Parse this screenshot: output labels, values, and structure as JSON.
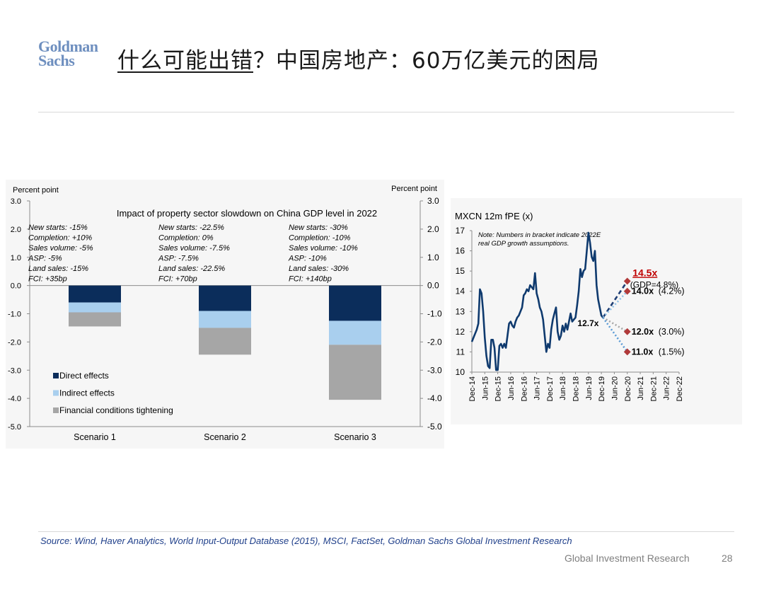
{
  "header": {
    "logo_line1": "Goldman",
    "logo_line2": "Sachs",
    "title_underlined": "什么可能出错",
    "title_rest": "？中国房地产：60万亿美元的困局"
  },
  "chart_data": [
    {
      "type": "bar",
      "stacked": true,
      "title": "Impact of property sector slowdown on China GDP level in 2022",
      "ylabel_left": "Percent point",
      "ylabel_right": "Percent point",
      "ylim": [
        -5.0,
        3.0
      ],
      "yticks_left": [
        "3.0",
        "2.0",
        "1.0",
        "0.0",
        "-1.0",
        "-2.0",
        "-3.0",
        "-4.0",
        "-5.0"
      ],
      "yticks_right": [
        "3.0",
        "2.0",
        "1.0",
        "0.0",
        "-1.0",
        "-2.0",
        "-3.0",
        "-4.0",
        "-5.0"
      ],
      "categories": [
        "Scenario 1",
        "Scenario 2",
        "Scenario 3"
      ],
      "series": [
        {
          "name": "Direct effects",
          "color": "#0b2d5b",
          "values": [
            -0.6,
            -0.9,
            -1.25
          ]
        },
        {
          "name": "Indirect effects",
          "color": "#a9cfee",
          "values": [
            -0.35,
            -0.6,
            -0.85
          ]
        },
        {
          "name": "Financial conditions tightening",
          "color": "#a6a6a6",
          "values": [
            -0.5,
            -0.95,
            -1.95
          ]
        }
      ],
      "annotations": [
        [
          "New starts: -15%",
          "Completion: +10%",
          "Sales volume: -5%",
          "ASP: -5%",
          "Land sales: -15%",
          "FCI: +35bp"
        ],
        [
          "New starts: -22.5%",
          "Completion: 0%",
          "Sales volume: -7.5%",
          "ASP: -7.5%",
          "Land sales: -22.5%",
          "FCI: +70bp"
        ],
        [
          "New starts: -30%",
          "Completion: -10%",
          "Sales volume: -10%",
          "ASP: -10%",
          "Land sales: -30%",
          "FCI: +140bp"
        ]
      ],
      "legend_position": "bottom-left"
    },
    {
      "type": "line",
      "title": "MXCN 12m fPE (x)",
      "note": [
        "Note: Numbers in bracket indicate 2022E",
        "real GDP growth assumptions."
      ],
      "ylim": [
        10,
        17
      ],
      "yticks": [
        "17",
        "16",
        "15",
        "14",
        "13",
        "12",
        "11",
        "10"
      ],
      "xticks": [
        "Dec-14",
        "Jun-15",
        "Dec-15",
        "Jun-16",
        "Dec-16",
        "Jun-17",
        "Dec-17",
        "Jun-18",
        "Dec-18",
        "Jun-19",
        "Dec-19",
        "Jun-20",
        "Dec-20",
        "Jun-21",
        "Dec-21",
        "Jun-22",
        "Dec-22"
      ],
      "series": [
        {
          "name": "MXCN 12m fPE",
          "color": "#0f3a6e",
          "x_start": 0,
          "x_step": 0.25,
          "values": [
            11.5,
            11.7,
            11.9,
            12.1,
            12.4,
            14.1,
            13.9,
            13.0,
            11.7,
            10.8,
            10.3,
            10.2,
            11.6,
            11.6,
            11.2,
            10.1,
            10.1,
            11.3,
            11.4,
            11.2,
            11.4,
            11.2,
            11.8,
            12.4,
            12.5,
            12.3,
            12.2,
            12.5,
            12.7,
            12.8,
            13.0,
            13.2,
            13.8,
            13.9,
            14.1,
            14.0,
            14.3,
            14.2,
            14.1,
            14.9,
            13.9,
            13.6,
            13.2,
            13.0,
            12.6,
            11.8,
            11.0,
            11.4,
            11.2,
            12.1,
            12.6,
            12.9,
            13.2,
            12.0,
            11.6,
            11.8,
            12.3,
            12.0,
            12.4,
            12.1,
            12.5,
            12.9,
            12.5,
            12.6,
            12.7,
            13.3,
            14.0,
            15.1,
            14.7,
            15.0,
            15.1,
            16.0,
            16.9,
            16.4,
            15.7,
            15.5,
            16.0,
            14.3,
            13.6,
            13.2,
            12.8,
            12.7
          ]
        }
      ],
      "projection_start": {
        "x": 20.25,
        "y": 12.7,
        "label": "12.7x"
      },
      "projections": [
        {
          "x": 24,
          "y": 14.5,
          "value_label": "14.5x",
          "note_label": "(GDP=4.8%)",
          "style": "dashed",
          "color": "#1f3f75"
        },
        {
          "x": 24,
          "y": 14.0,
          "value_label": "14.0x",
          "note_label": "(4.2%)",
          "style": "dotted",
          "color": "#8fc1e6"
        },
        {
          "x": 24,
          "y": 12.0,
          "value_label": "12.0x",
          "note_label": "(3.0%)",
          "style": "dotted",
          "color": "#a6a6a6"
        },
        {
          "x": 24,
          "y": 11.0,
          "value_label": "11.0x",
          "note_label": "(1.5%)",
          "style": "dotted",
          "color": "#5b9bd5"
        }
      ],
      "marker_color": "#b03a3a"
    }
  ],
  "footer": {
    "source": "Source: Wind, Haver Analytics, World Input-Output Database (2015), MSCI, FactSet, Goldman Sachs Global Investment Research",
    "brand": "Global Investment Research",
    "page": "28"
  }
}
